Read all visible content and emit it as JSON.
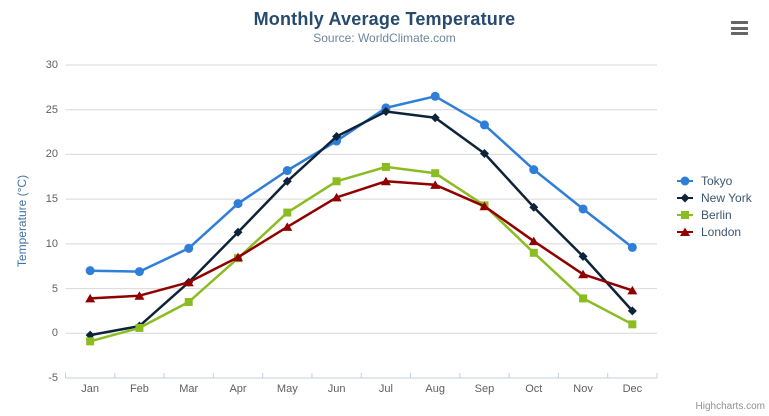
{
  "chart_data": {
    "type": "line",
    "title": "Monthly Average Temperature",
    "subtitle": "Source: WorldClimate.com",
    "categories": [
      "Jan",
      "Feb",
      "Mar",
      "Apr",
      "May",
      "Jun",
      "Jul",
      "Aug",
      "Sep",
      "Oct",
      "Nov",
      "Dec"
    ],
    "xlabel": "",
    "ylabel": "Temperature (°C)",
    "ylim": [
      -5,
      30
    ],
    "yticks": [
      -5,
      0,
      5,
      10,
      15,
      20,
      25,
      30
    ],
    "grid": true,
    "legend_position": "right",
    "series": [
      {
        "name": "Tokyo",
        "color": "#2f7ed8",
        "marker": "circle",
        "values": [
          7.0,
          6.9,
          9.5,
          14.5,
          18.2,
          21.5,
          25.2,
          26.5,
          23.3,
          18.3,
          13.9,
          9.6
        ]
      },
      {
        "name": "New York",
        "color": "#0d233a",
        "marker": "diamond",
        "values": [
          -0.2,
          0.8,
          5.7,
          11.3,
          17.0,
          22.0,
          24.8,
          24.1,
          20.1,
          14.1,
          8.6,
          2.5
        ]
      },
      {
        "name": "Berlin",
        "color": "#8bbc21",
        "marker": "square",
        "values": [
          -0.9,
          0.6,
          3.5,
          8.4,
          13.5,
          17.0,
          18.6,
          17.9,
          14.3,
          9.0,
          3.9,
          1.0
        ]
      },
      {
        "name": "London",
        "color": "#910000",
        "marker": "triangle",
        "values": [
          3.9,
          4.2,
          5.7,
          8.5,
          11.9,
          15.2,
          17.0,
          16.6,
          14.2,
          10.3,
          6.6,
          4.8
        ]
      }
    ]
  },
  "export_menu": {
    "icon": "hamburger-icon"
  },
  "credit": "Highcharts.com",
  "theme": {
    "title_color": "#274b6d",
    "subtitle_color": "#6d869f",
    "axis_title_color": "#4572a7",
    "axis_label_color": "#606060",
    "legend_text_color": "#3e576f",
    "grid_color": "#d8d8d8",
    "axis_line_color": "#c0d0e0",
    "credit_color": "#909090",
    "menu_icon_color": "#666666"
  }
}
